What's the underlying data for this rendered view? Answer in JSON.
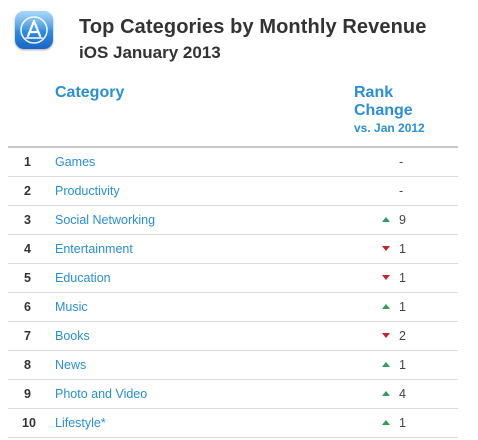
{
  "header": {
    "icon": "app-store-icon",
    "title": "Top Categories by Monthly Revenue",
    "subtitle": "iOS January 2013"
  },
  "columns": {
    "category": "Category",
    "rank_change_line1": "Rank",
    "rank_change_line2": "Change",
    "rank_change_sub": "vs. Jan 2012"
  },
  "colors": {
    "accent": "#2a8fd6",
    "up": "#2aa05a",
    "down": "#c0262d"
  },
  "rows": [
    {
      "rank": "1",
      "category": "Games",
      "direction": "none",
      "change": "-"
    },
    {
      "rank": "2",
      "category": "Productivity",
      "direction": "none",
      "change": "-"
    },
    {
      "rank": "3",
      "category": "Social Networking",
      "direction": "up",
      "change": "9"
    },
    {
      "rank": "4",
      "category": "Entertainment",
      "direction": "down",
      "change": "1"
    },
    {
      "rank": "5",
      "category": "Education",
      "direction": "down",
      "change": "1"
    },
    {
      "rank": "6",
      "category": "Music",
      "direction": "up",
      "change": "1"
    },
    {
      "rank": "7",
      "category": "Books",
      "direction": "down",
      "change": "2"
    },
    {
      "rank": "8",
      "category": "News",
      "direction": "up",
      "change": "1"
    },
    {
      "rank": "9",
      "category": "Photo and Video",
      "direction": "up",
      "change": "4"
    },
    {
      "rank": "10",
      "category": "Lifestyle*",
      "direction": "up",
      "change": "1"
    }
  ]
}
